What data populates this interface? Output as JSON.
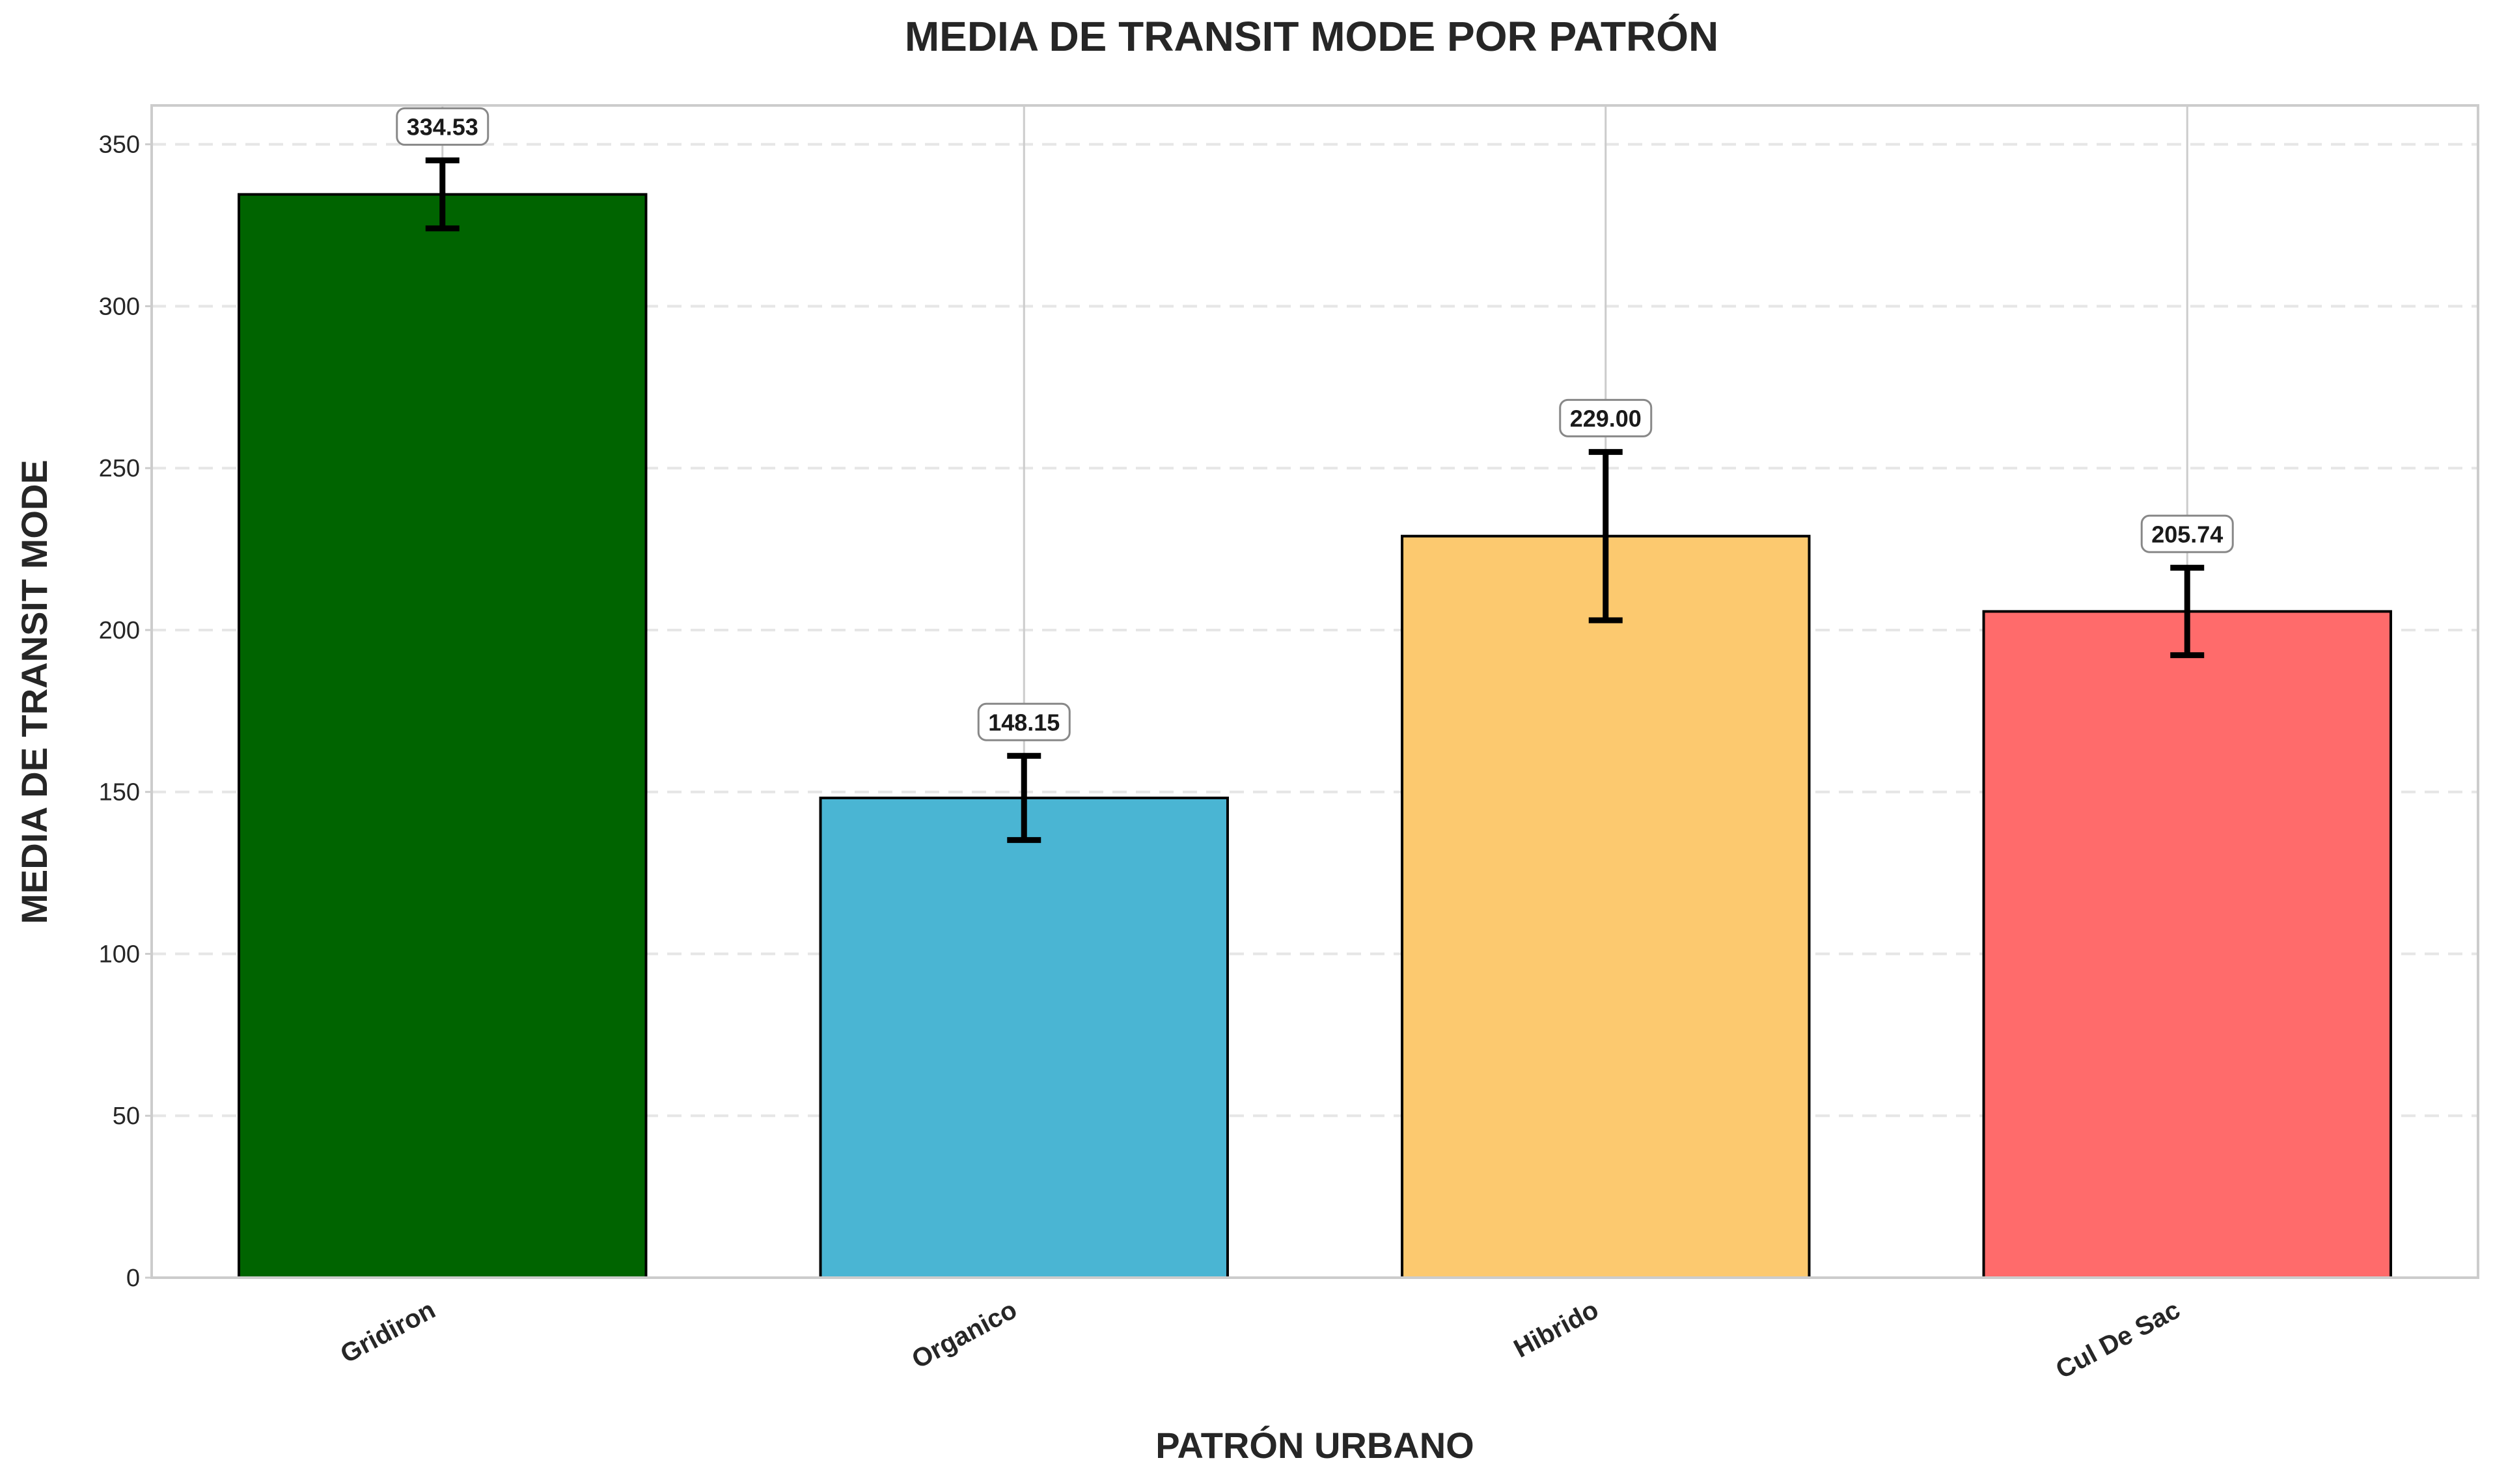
{
  "chart_data": {
    "type": "bar",
    "title": "MEDIA DE TRANSIT MODE POR PATRÓN",
    "xlabel": "PATRÓN URBANO",
    "ylabel": "MEDIA DE TRANSIT MODE",
    "categories": [
      "Gridiron",
      "Organico",
      "Hibrido",
      "Cul De Sac"
    ],
    "values": [
      334.53,
      148.15,
      229.0,
      205.74
    ],
    "value_labels": [
      "334.53",
      "148.15",
      "229.00",
      "205.74"
    ],
    "error": [
      10.5,
      13.0,
      26.0,
      13.5
    ],
    "colors": [
      "#006400",
      "#4ab5d3",
      "#fcc96f",
      "#ff6b6b"
    ],
    "ylim": [
      0,
      362
    ],
    "yticks": [
      0,
      50,
      100,
      150,
      200,
      250,
      300,
      350
    ],
    "ytick_labels": [
      "0",
      "50",
      "100",
      "150",
      "200",
      "250",
      "300",
      "350"
    ],
    "grid": true,
    "legend": false
  }
}
